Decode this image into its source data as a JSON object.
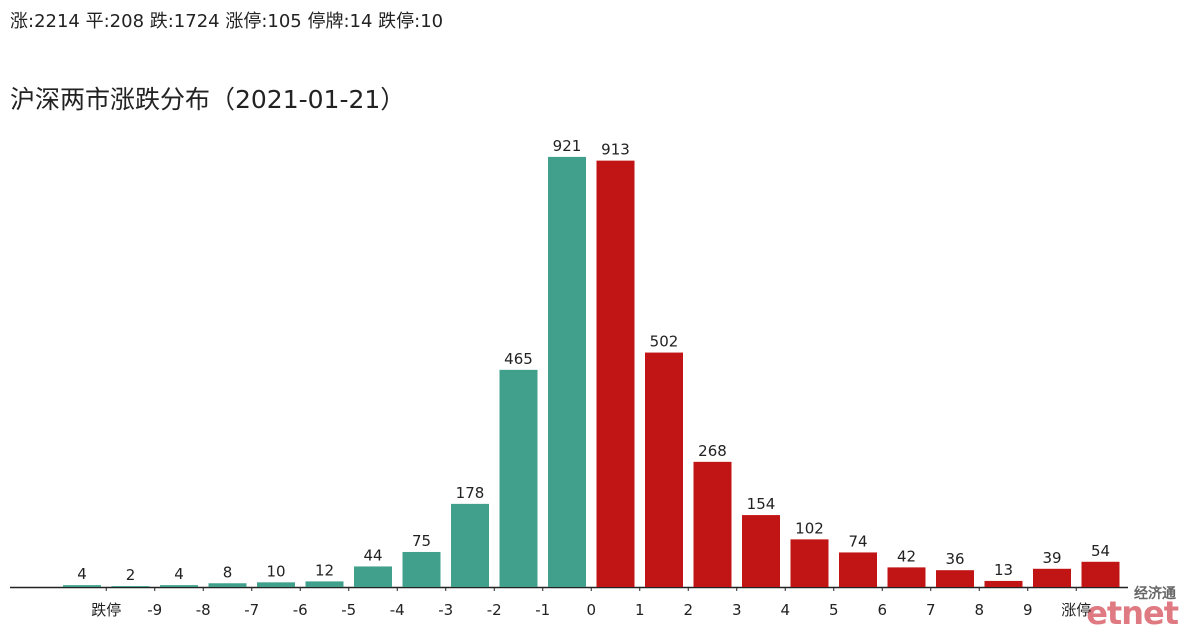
{
  "header": {
    "summary": "涨:2214 平:208 跌:1724 涨停:105 停牌:14 跌停:10"
  },
  "chart_data": {
    "type": "bar",
    "title": "沪深两市涨跌分布（2021-01-21）",
    "values": [
      4,
      2,
      4,
      8,
      10,
      12,
      44,
      75,
      178,
      465,
      921,
      913,
      502,
      268,
      154,
      102,
      74,
      42,
      36,
      13,
      39,
      54
    ],
    "colors": [
      "#41a08c",
      "#41a08c",
      "#41a08c",
      "#41a08c",
      "#41a08c",
      "#41a08c",
      "#41a08c",
      "#41a08c",
      "#41a08c",
      "#41a08c",
      "#41a08c",
      "#c11414",
      "#c11414",
      "#c11414",
      "#c11414",
      "#c11414",
      "#c11414",
      "#c11414",
      "#c11414",
      "#c11414",
      "#c11414",
      "#c11414"
    ],
    "edge_labels": [
      "跌停",
      "-9",
      "-8",
      "-7",
      "-6",
      "-5",
      "-4",
      "-3",
      "-2",
      "-1",
      "0",
      "1",
      "2",
      "3",
      "4",
      "5",
      "6",
      "7",
      "8",
      "9",
      "涨停"
    ],
    "ylim": [
      0,
      1000
    ]
  },
  "watermark": {
    "cn": "经济通",
    "en": "etnet"
  }
}
